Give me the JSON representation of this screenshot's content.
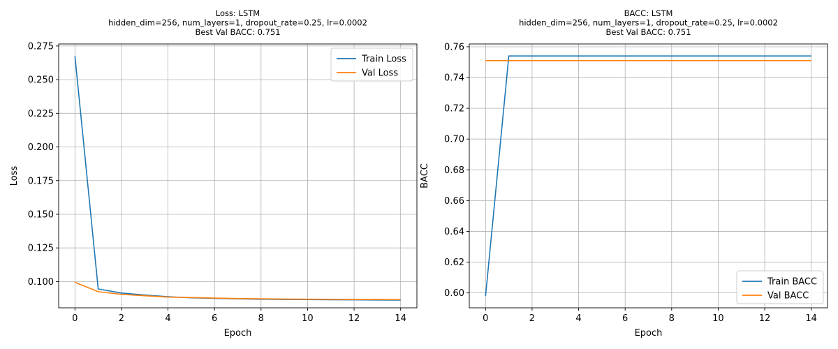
{
  "chart_data": [
    {
      "type": "line",
      "title_lines": [
        "Loss: LSTM",
        "hidden_dim=256, num_layers=1, dropout_rate=0.25, lr=0.0002",
        "Best Val BACC: 0.751"
      ],
      "xlabel": "Epoch",
      "ylabel": "Loss",
      "xlim": [
        -0.7,
        14.7
      ],
      "ylim": [
        0.0805,
        0.2765
      ],
      "xticks": [
        0,
        2,
        4,
        6,
        8,
        10,
        12,
        14
      ],
      "yticks": [
        0.1,
        0.125,
        0.15,
        0.175,
        0.2,
        0.225,
        0.25,
        0.275
      ],
      "ytick_labels": [
        "0.100",
        "0.125",
        "0.150",
        "0.175",
        "0.200",
        "0.225",
        "0.250",
        "0.275"
      ],
      "grid": true,
      "legend_position": "top-right",
      "x": [
        0,
        1,
        2,
        3,
        4,
        5,
        6,
        7,
        8,
        9,
        10,
        11,
        12,
        13,
        14
      ],
      "series": [
        {
          "name": "Train Loss",
          "color": "#1f77b4",
          "values": [
            0.2675,
            0.0945,
            0.0915,
            0.09,
            0.0888,
            0.0879,
            0.0875,
            0.0872,
            0.0869,
            0.0867,
            0.0866,
            0.0865,
            0.0864,
            0.0863,
            0.0862
          ]
        },
        {
          "name": "Val Loss",
          "color": "#ff7f0e",
          "values": [
            0.0995,
            0.0925,
            0.0905,
            0.0895,
            0.0885,
            0.0881,
            0.0877,
            0.0874,
            0.0872,
            0.087,
            0.0869,
            0.0868,
            0.0867,
            0.0867,
            0.0866
          ]
        }
      ]
    },
    {
      "type": "line",
      "title_lines": [
        "BACC: LSTM",
        "hidden_dim=256, num_layers=1, dropout_rate=0.25, lr=0.0002",
        "Best Val BACC: 0.751"
      ],
      "xlabel": "Epoch",
      "ylabel": "BACC",
      "xlim": [
        -0.7,
        14.7
      ],
      "ylim": [
        0.5903,
        0.7618
      ],
      "xticks": [
        0,
        2,
        4,
        6,
        8,
        10,
        12,
        14
      ],
      "yticks": [
        0.6,
        0.62,
        0.64,
        0.66,
        0.68,
        0.7,
        0.72,
        0.74,
        0.76
      ],
      "ytick_labels": [
        "0.60",
        "0.62",
        "0.64",
        "0.66",
        "0.68",
        "0.70",
        "0.72",
        "0.74",
        "0.76"
      ],
      "grid": true,
      "legend_position": "bottom-right",
      "x": [
        0,
        1,
        2,
        3,
        4,
        5,
        6,
        7,
        8,
        9,
        10,
        11,
        12,
        13,
        14
      ],
      "series": [
        {
          "name": "Train BACC",
          "color": "#1f77b4",
          "values": [
            0.598,
            0.754,
            0.754,
            0.754,
            0.754,
            0.754,
            0.754,
            0.754,
            0.754,
            0.754,
            0.754,
            0.754,
            0.754,
            0.754,
            0.754
          ]
        },
        {
          "name": "Val BACC",
          "color": "#ff7f0e",
          "values": [
            0.751,
            0.751,
            0.751,
            0.751,
            0.751,
            0.751,
            0.751,
            0.751,
            0.751,
            0.751,
            0.751,
            0.751,
            0.751,
            0.751,
            0.751
          ]
        }
      ]
    }
  ]
}
